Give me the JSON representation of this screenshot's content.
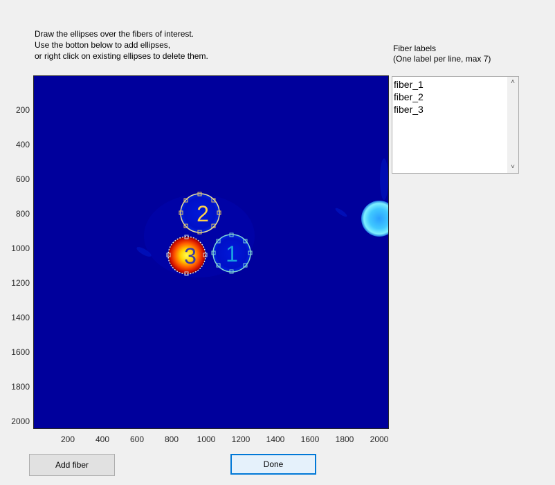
{
  "instructions": {
    "line1": "Draw the ellipses over the fibers of interest.",
    "line2": "Use the botton below to add ellipses,",
    "line3": "or right click on existing ellipses to delete them."
  },
  "fiber_panel": {
    "title_line1": "Fiber labels",
    "title_line2": "(One label per line, max 7)",
    "labels": [
      "fiber_1",
      "fiber_2",
      "fiber_3"
    ]
  },
  "buttons": {
    "add_fiber": "Add fiber",
    "done": "Done"
  },
  "plot": {
    "x_ticks": [
      "200",
      "400",
      "600",
      "800",
      "1000",
      "1200",
      "1400",
      "1600",
      "1800",
      "2000"
    ],
    "y_ticks": [
      "200",
      "400",
      "600",
      "800",
      "1000",
      "1200",
      "1400",
      "1600",
      "1800",
      "2000"
    ],
    "ellipses": [
      {
        "label": "1",
        "color": "#1a9fdf",
        "border": "#7fd4d4"
      },
      {
        "label": "2",
        "color": "#ffd24a",
        "border": "#e8d070"
      },
      {
        "label": "3",
        "color": "#3838a8",
        "border": "#d0d0d0"
      }
    ],
    "colors": {
      "background": "#00009a",
      "hot_center": "#ffff40",
      "hot_mid": "#ff6a00",
      "hot_edge": "#c80000",
      "cyan_spot": "#60e0ff"
    }
  }
}
